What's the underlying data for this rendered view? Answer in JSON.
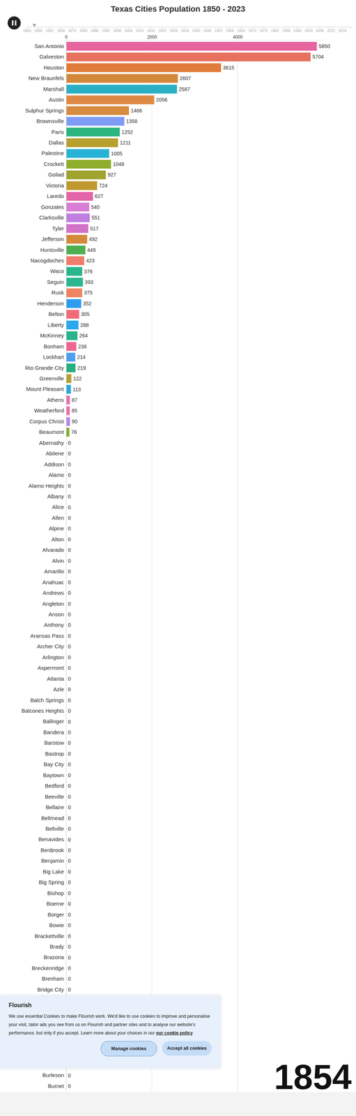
{
  "chart_data": {
    "type": "bar",
    "title": "Texas Cities Population 1850 - 2023",
    "orientation": "horizontal",
    "data_labels": true,
    "grid": true,
    "categories": [
      "San Antonio",
      "Galveston",
      "Houston",
      "New Braunfels",
      "Marshall",
      "Austin",
      "Sulphur Springs",
      "Brownsville",
      "Paris",
      "Dallas",
      "Palestine",
      "Crockett",
      "Goliad",
      "Victoria",
      "Laredo",
      "Gonzales",
      "Clarksville",
      "Tyler",
      "Jefferson",
      "Huntsville",
      "Nacogdoches",
      "Waco",
      "Seguin",
      "Rusk",
      "Henderson",
      "Belton",
      "Liberty",
      "McKinney",
      "Bonham",
      "Lockhart",
      "Rio Grande City",
      "Greenville",
      "Mount Pleasant",
      "Athens",
      "Weatherford",
      "Corpus Christi",
      "Beaumont",
      "Abernathy",
      "Abilene",
      "Addison",
      "Alamo",
      "Alamo Heights",
      "Albany",
      "Alice",
      "Allen",
      "Alpine",
      "Alton",
      "Alvarado",
      "Alvin",
      "Amarillo",
      "Anahuac",
      "Andrews",
      "Angleton",
      "Anson",
      "Anthony",
      "Aransas Pass",
      "Archer City",
      "Arlington",
      "Aspermont",
      "Atlanta",
      "Azle",
      "Balch Springs",
      "Balcones Heights",
      "Ballinger",
      "Bandera",
      "Barstow",
      "Bastrop",
      "Bay City",
      "Baytown",
      "Bedford",
      "Beeville",
      "Bellaire",
      "Bellmead",
      "Bellville",
      "Benavides",
      "Benbrook",
      "Benjamin",
      "Big Lake",
      "Big Spring",
      "Bishop",
      "Boerne",
      "Borger",
      "Bowie",
      "Brackettville",
      "Brady",
      "Brazoria",
      "Breckenridge",
      "Brenham",
      "Bridge City",
      null,
      null,
      null,
      null,
      null,
      null,
      null,
      "Burleson",
      "Burnet"
    ],
    "values": [
      5850,
      5704,
      3615,
      2607,
      2587,
      2056,
      1466,
      1358,
      1252,
      1211,
      1005,
      1048,
      927,
      724,
      627,
      540,
      551,
      517,
      492,
      449,
      423,
      376,
      393,
      375,
      352,
      305,
      288,
      264,
      238,
      214,
      219,
      122,
      113,
      87,
      85,
      90,
      76,
      0,
      0,
      0,
      0,
      0,
      0,
      0,
      0,
      0,
      0,
      0,
      0,
      0,
      0,
      0,
      0,
      0,
      0,
      0,
      0,
      0,
      0,
      0,
      0,
      0,
      0,
      0,
      0,
      0,
      0,
      0,
      0,
      0,
      0,
      0,
      0,
      0,
      0,
      0,
      0,
      0,
      0,
      0,
      0,
      0,
      0,
      0,
      0,
      0,
      0,
      0,
      0,
      null,
      null,
      null,
      null,
      null,
      null,
      null,
      0,
      0
    ],
    "colors": [
      "#e8649f",
      "#e8705f",
      "#e07b39",
      "#d4893a",
      "#2ab0c5",
      "#de8a45",
      "#d88c3f",
      "#7f9cf5",
      "#2bb57f",
      "#b8a030",
      "#28b3d6",
      "#8fae2e",
      "#a0a32e",
      "#c09a2e",
      "#e464a9",
      "#d87ed6",
      "#c07fe0",
      "#d471c9",
      "#d48a3a",
      "#4caf50",
      "#ef7c6c",
      "#2bb58a",
      "#2bb591",
      "#ee8460",
      "#2f9cf0",
      "#f06a7a",
      "#2aa8ee",
      "#2ab38d",
      "#f06590",
      "#4f9ff0",
      "#26b07f",
      "#b5a030",
      "#2aa8e0",
      "#e66fb5",
      "#e86fb0",
      "#b38ae8",
      "#7fae30",
      "#999999",
      "#999999",
      "#999999",
      "#999999",
      "#999999",
      "#999999",
      "#999999",
      "#999999",
      "#999999",
      "#999999",
      "#999999",
      "#999999",
      "#999999",
      "#999999",
      "#999999",
      "#999999",
      "#999999",
      "#999999",
      "#999999",
      "#999999",
      "#999999",
      "#999999",
      "#999999",
      "#999999",
      "#999999",
      "#999999",
      "#999999",
      "#999999",
      "#999999",
      "#999999",
      "#999999",
      "#999999",
      "#999999",
      "#999999",
      "#999999",
      "#999999",
      "#999999",
      "#999999",
      "#999999",
      "#999999",
      "#999999",
      "#999999",
      "#999999",
      "#999999",
      "#999999",
      "#999999",
      "#999999",
      "#999999",
      "#999999",
      "#999999",
      "#999999",
      "#999999",
      null,
      null,
      null,
      null,
      null,
      null,
      null,
      "#999999",
      "#999999"
    ],
    "xlim": [
      0,
      6000
    ],
    "xticks": [
      0,
      2000,
      4000
    ],
    "timeline": {
      "xlim": [
        1850,
        2023
      ],
      "xticks": [
        1850,
        1856,
        1862,
        1868,
        1874,
        1880,
        1886,
        1892,
        1898,
        1904,
        1910,
        1916,
        1922,
        1928,
        1934,
        1940,
        1946,
        1952,
        1958,
        1964,
        1970,
        1976,
        1982,
        1988,
        1994,
        2000,
        2006,
        2012,
        2018
      ],
      "value": 1854
    }
  },
  "cookie_banner": {
    "title": "Flourish",
    "text": "We use essential Cookies to make Flourish work. We'd like to use cookies to improve and personalise your visit, tailor ads you see from us on Flourish and partner sites and to analyse our website's performance, but only if you accept. Learn more about your choices in our",
    "link": "our cookie policy",
    "buttons": [
      "Manage cookies",
      "Accept all cookies"
    ]
  }
}
